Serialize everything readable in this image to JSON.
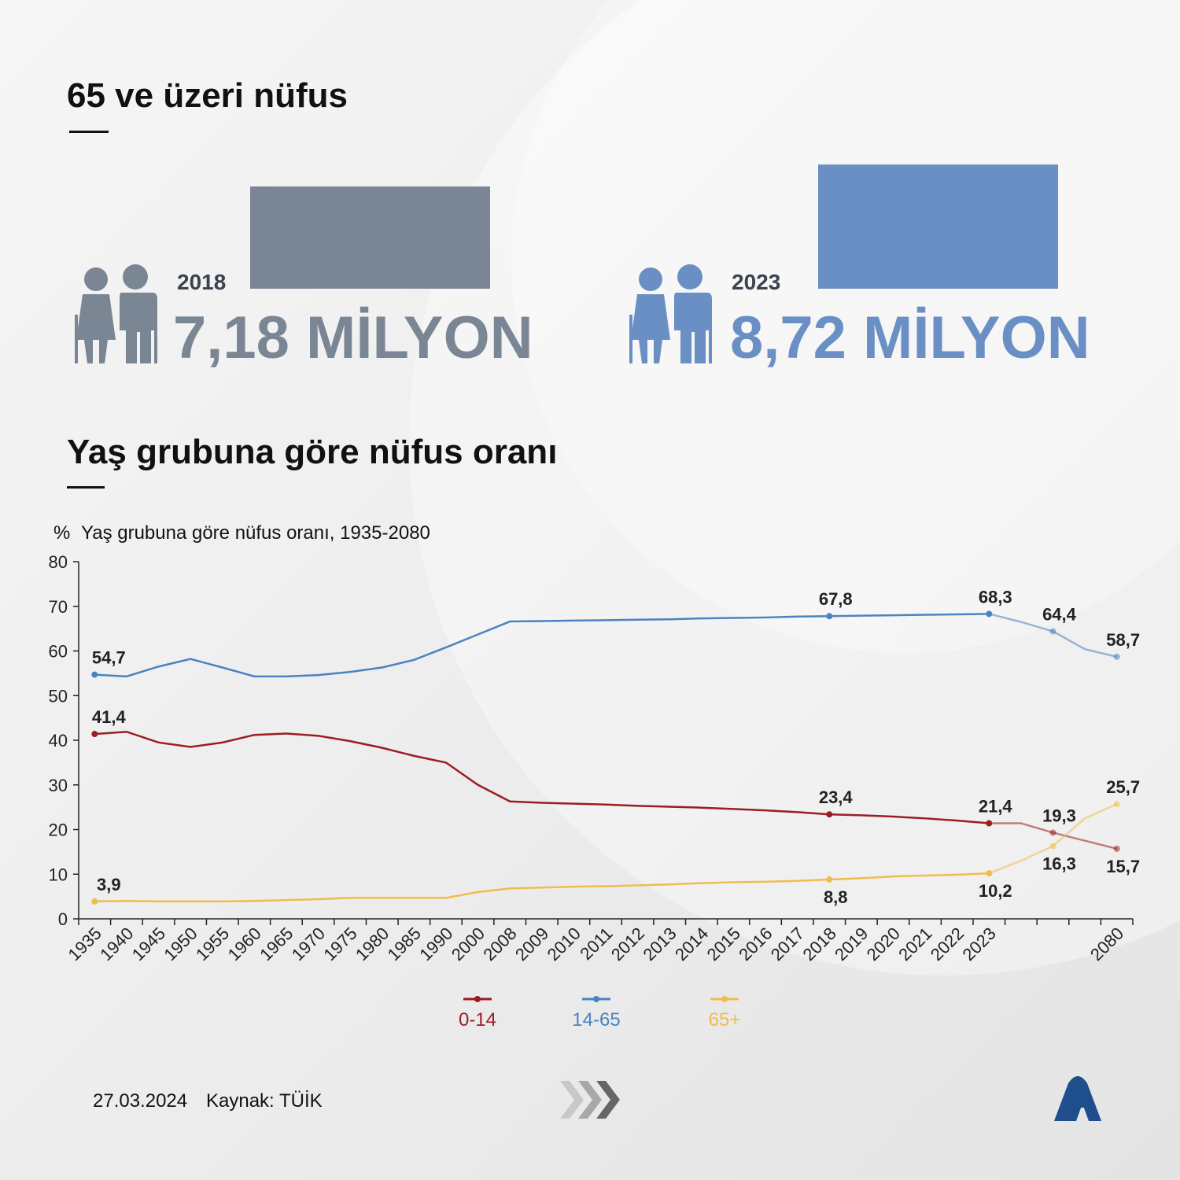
{
  "header": {
    "title": "65 ve üzeri nüfus"
  },
  "stats": [
    {
      "year": "2018",
      "value": 7.18,
      "label": "7,18 MİLYON",
      "color": "#7a8694"
    },
    {
      "year": "2023",
      "value": 8.72,
      "label": "8,72 MİLYON",
      "color": "#6a8fc4"
    }
  ],
  "section_title": "Yaş grubuna göre nüfus oranı",
  "chart_data": {
    "type": "line",
    "unit": "%",
    "subtitle": "Yaş grubuna göre nüfus oranı, 1935-2080",
    "categories": [
      "1935",
      "1940",
      "1945",
      "1950",
      "1955",
      "1960",
      "1965",
      "1970",
      "1975",
      "1980",
      "1985",
      "1990",
      "2000",
      "2008",
      "2009",
      "2010",
      "2011",
      "2012",
      "2013",
      "2014",
      "2015",
      "2016",
      "2017",
      "2018",
      "2019",
      "2020",
      "2021",
      "2022",
      "2023",
      null,
      null,
      null,
      "2080"
    ],
    "ylim": [
      0,
      80
    ],
    "yticks": [
      0,
      10,
      20,
      30,
      40,
      50,
      60,
      70,
      80
    ],
    "grid": false,
    "series": [
      {
        "name": "0-14",
        "color": "#9b1d22",
        "values": [
          41.4,
          41.9,
          39.5,
          38.5,
          39.5,
          41.2,
          41.5,
          41.0,
          39.8,
          38.3,
          36.5,
          35.0,
          30.0,
          26.3,
          26.0,
          25.8,
          25.6,
          25.3,
          25.1,
          24.9,
          24.6,
          24.3,
          23.9,
          23.4,
          23.2,
          22.9,
          22.5,
          22.0,
          21.4,
          21.4,
          19.3,
          17.5,
          15.7
        ],
        "value_labels": [
          "41,4",
          null,
          null,
          null,
          null,
          null,
          null,
          null,
          null,
          null,
          null,
          null,
          null,
          null,
          null,
          null,
          null,
          null,
          null,
          null,
          null,
          null,
          null,
          "23,4",
          null,
          null,
          null,
          null,
          "21,4",
          null,
          "19,3",
          null,
          "15,7"
        ]
      },
      {
        "name": "14-65",
        "color": "#4a84bf",
        "values": [
          54.7,
          54.3,
          56.5,
          58.2,
          56.3,
          54.3,
          54.3,
          54.6,
          55.3,
          56.3,
          58.0,
          60.8,
          63.7,
          66.6,
          66.7,
          66.8,
          66.9,
          67.0,
          67.1,
          67.3,
          67.4,
          67.5,
          67.7,
          67.8,
          67.9,
          68.0,
          68.1,
          68.2,
          68.3,
          66.5,
          64.4,
          60.4,
          58.7
        ],
        "value_labels": [
          "54,7",
          null,
          null,
          null,
          null,
          null,
          null,
          null,
          null,
          null,
          null,
          null,
          null,
          null,
          null,
          null,
          null,
          null,
          null,
          null,
          null,
          null,
          null,
          "67,8",
          null,
          null,
          null,
          null,
          "68,3",
          null,
          "64,4",
          null,
          "58,7"
        ]
      },
      {
        "name": "65+",
        "color": "#f0bd4c",
        "values": [
          3.9,
          4.0,
          3.9,
          3.9,
          3.9,
          4.0,
          4.2,
          4.4,
          4.7,
          4.7,
          4.7,
          4.7,
          6.0,
          6.8,
          7.0,
          7.2,
          7.3,
          7.5,
          7.7,
          8.0,
          8.2,
          8.3,
          8.5,
          8.8,
          9.1,
          9.5,
          9.7,
          9.9,
          10.2,
          13.0,
          16.3,
          22.5,
          25.7
        ],
        "value_labels": [
          "3,9",
          null,
          null,
          null,
          null,
          null,
          null,
          null,
          null,
          null,
          null,
          null,
          null,
          null,
          null,
          null,
          null,
          null,
          null,
          null,
          null,
          null,
          null,
          "8,8",
          null,
          null,
          null,
          null,
          "10,2",
          null,
          "16,3",
          null,
          "25,7"
        ]
      }
    ]
  },
  "footer": {
    "date": "27.03.2024",
    "source": "Kaynak: TÜİK"
  }
}
